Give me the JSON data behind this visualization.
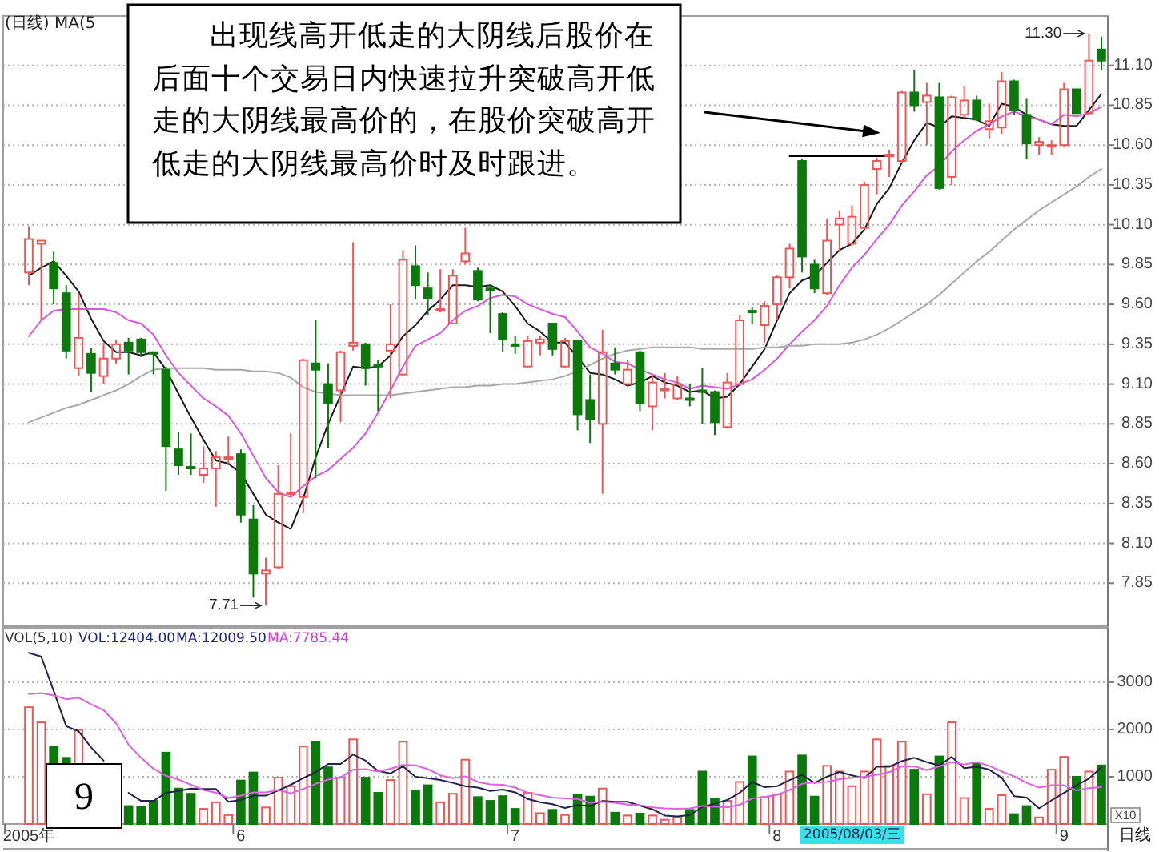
{
  "chart_data": [
    {
      "type": "candlestick",
      "categories": [
        null,
        null,
        null,
        null,
        null,
        null,
        null,
        null,
        null,
        null,
        null,
        null,
        null,
        null,
        null,
        null,
        null,
        null,
        null,
        null,
        null,
        null,
        null,
        null,
        null,
        null,
        null,
        null,
        null,
        null,
        null,
        null,
        null,
        null,
        null,
        null,
        null,
        null,
        null,
        null,
        null,
        null,
        null,
        null,
        null,
        null,
        null,
        null,
        null,
        null,
        null,
        null,
        null,
        null,
        null,
        null,
        null,
        null,
        null,
        null,
        null,
        null,
        null,
        null,
        null,
        null,
        null,
        null,
        null,
        null,
        null,
        null,
        null,
        null,
        null,
        null,
        null,
        null,
        null,
        null,
        null,
        null,
        null,
        null,
        null,
        null,
        null
      ],
      "ohlc": [
        [
          9.8,
          10.09,
          9.72,
          10.01
        ],
        [
          9.98,
          10.0,
          9.5,
          10.0
        ],
        [
          9.86,
          9.93,
          9.6,
          9.7
        ],
        [
          9.67,
          9.72,
          9.26,
          9.31
        ],
        [
          9.2,
          9.67,
          9.15,
          9.39
        ],
        [
          9.29,
          9.33,
          9.05,
          9.17
        ],
        [
          9.15,
          9.36,
          9.1,
          9.26
        ],
        [
          9.26,
          9.38,
          9.23,
          9.35
        ],
        [
          9.36,
          9.39,
          9.16,
          9.31
        ],
        [
          9.38,
          9.39,
          9.27,
          9.3
        ],
        [
          9.3,
          9.3,
          9.16,
          9.29
        ],
        [
          9.19,
          9.21,
          8.43,
          8.71
        ],
        [
          8.69,
          8.8,
          8.53,
          8.59
        ],
        [
          8.58,
          8.79,
          8.53,
          8.57
        ],
        [
          8.53,
          8.71,
          8.48,
          8.57
        ],
        [
          8.57,
          8.68,
          8.33,
          8.64
        ],
        [
          8.63,
          8.77,
          8.59,
          8.64
        ],
        [
          8.66,
          8.69,
          8.23,
          8.28
        ],
        [
          8.25,
          8.34,
          7.76,
          7.91
        ],
        [
          7.91,
          8.01,
          7.71,
          7.93
        ],
        [
          7.95,
          8.59,
          7.94,
          8.41
        ],
        [
          8.41,
          8.79,
          8.39,
          8.42
        ],
        [
          8.39,
          9.26,
          8.29,
          9.25
        ],
        [
          9.23,
          9.5,
          8.51,
          9.19
        ],
        [
          9.1,
          9.23,
          8.7,
          8.98
        ],
        [
          9.06,
          9.31,
          8.86,
          9.3
        ],
        [
          9.34,
          9.99,
          9.31,
          9.36
        ],
        [
          9.35,
          9.36,
          9.09,
          9.2
        ],
        [
          9.22,
          9.25,
          8.93,
          9.21
        ],
        [
          9.31,
          9.6,
          9.01,
          9.35
        ],
        [
          9.16,
          9.94,
          9.15,
          9.88
        ],
        [
          9.84,
          9.97,
          9.63,
          9.72
        ],
        [
          9.7,
          9.8,
          9.53,
          9.64
        ],
        [
          9.56,
          9.82,
          9.55,
          9.57
        ],
        [
          9.48,
          9.82,
          9.48,
          9.78
        ],
        [
          9.87,
          10.08,
          9.85,
          9.92
        ],
        [
          9.81,
          9.83,
          9.62,
          9.63
        ],
        [
          9.7,
          9.72,
          9.42,
          9.69
        ],
        [
          9.54,
          9.55,
          9.3,
          9.38
        ],
        [
          9.35,
          9.4,
          9.29,
          9.34
        ],
        [
          9.21,
          9.4,
          9.2,
          9.37
        ],
        [
          9.36,
          9.4,
          9.28,
          9.38
        ],
        [
          9.48,
          9.48,
          9.28,
          9.32
        ],
        [
          9.21,
          9.39,
          9.2,
          9.37
        ],
        [
          9.37,
          9.38,
          8.81,
          8.91
        ],
        [
          9.0,
          9.16,
          8.73,
          8.88
        ],
        [
          8.85,
          9.44,
          8.41,
          9.3
        ],
        [
          9.23,
          9.33,
          9.16,
          9.19
        ],
        [
          9.1,
          9.25,
          9.09,
          9.19
        ],
        [
          9.3,
          9.31,
          8.93,
          8.98
        ],
        [
          8.96,
          9.16,
          8.81,
          9.11
        ],
        [
          9.06,
          9.17,
          9.01,
          9.07
        ],
        [
          9.01,
          9.15,
          9.0,
          9.1
        ],
        [
          9.01,
          9.1,
          8.96,
          9.0
        ],
        [
          9.06,
          9.2,
          8.85,
          9.05
        ],
        [
          9.05,
          9.06,
          8.78,
          8.86
        ],
        [
          8.83,
          9.17,
          8.82,
          9.11
        ],
        [
          9.1,
          9.53,
          9.1,
          9.5
        ],
        [
          9.56,
          9.58,
          9.48,
          9.55
        ],
        [
          9.47,
          9.62,
          9.36,
          9.59
        ],
        [
          9.6,
          9.78,
          9.5,
          9.77
        ],
        [
          9.77,
          9.98,
          9.7,
          9.95
        ],
        [
          10.5,
          10.51,
          9.8,
          9.9
        ],
        [
          9.85,
          9.88,
          9.67,
          9.7
        ],
        [
          9.67,
          10.14,
          9.66,
          10.0
        ],
        [
          10.1,
          10.19,
          9.93,
          10.14
        ],
        [
          9.98,
          10.22,
          9.97,
          10.15
        ],
        [
          10.08,
          10.37,
          10.07,
          10.35
        ],
        [
          10.45,
          10.52,
          10.29,
          10.5
        ],
        [
          10.53,
          10.57,
          10.4,
          10.54
        ],
        [
          10.5,
          10.94,
          10.49,
          10.93
        ],
        [
          10.93,
          11.07,
          10.81,
          10.85
        ],
        [
          10.87,
          10.99,
          10.6,
          10.91
        ],
        [
          10.9,
          10.99,
          10.32,
          10.33
        ],
        [
          10.4,
          10.91,
          10.35,
          10.9
        ],
        [
          10.79,
          10.97,
          10.77,
          10.88
        ],
        [
          10.88,
          10.91,
          10.75,
          10.76
        ],
        [
          10.7,
          10.86,
          10.64,
          10.75
        ],
        [
          10.71,
          11.06,
          10.67,
          11.0
        ],
        [
          11.0,
          11.01,
          10.79,
          10.82
        ],
        [
          10.79,
          10.89,
          10.51,
          10.61
        ],
        [
          10.6,
          10.65,
          10.54,
          10.62
        ],
        [
          10.59,
          10.63,
          10.54,
          10.6
        ],
        [
          10.6,
          10.99,
          10.59,
          10.95
        ],
        [
          10.95,
          10.95,
          10.8,
          10.8
        ],
        [
          10.8,
          11.3,
          10.79,
          11.13
        ],
        [
          11.2,
          11.28,
          11.07,
          11.13
        ]
      ],
      "colors": [
        "#ee5555",
        "#ee5555",
        "#0b7a0b",
        "#0b7a0b",
        "#ee5555",
        "#0b7a0b",
        "#ee5555",
        "#ee5555",
        "#0b7a0b",
        "#0b7a0b",
        "#0b7a0b",
        "#0b7a0b",
        "#0b7a0b",
        "#0b7a0b",
        "#ee5555",
        "#ee5555",
        "#ee5555",
        "#0b7a0b",
        "#0b7a0b",
        "#ee5555",
        "#ee5555",
        "#ee5555",
        "#ee5555",
        "#0b7a0b",
        "#0b7a0b",
        "#ee5555",
        "#ee5555",
        "#0b7a0b",
        "#0b7a0b",
        "#ee5555",
        "#ee5555",
        "#0b7a0b",
        "#0b7a0b",
        "#ee5555",
        "#ee5555",
        "#ee5555",
        "#0b7a0b",
        "#0b7a0b",
        "#0b7a0b",
        "#0b7a0b",
        "#ee5555",
        "#ee5555",
        "#0b7a0b",
        "#ee5555",
        "#0b7a0b",
        "#0b7a0b",
        "#ee5555",
        "#0b7a0b",
        "#ee5555",
        "#0b7a0b",
        "#ee5555",
        "#ee5555",
        "#ee5555",
        "#0b7a0b",
        "#0b7a0b",
        "#0b7a0b",
        "#ee5555",
        "#ee5555",
        "#0b7a0b",
        "#ee5555",
        "#ee5555",
        "#ee5555",
        "#0b7a0b",
        "#0b7a0b",
        "#ee5555",
        "#ee5555",
        "#ee5555",
        "#ee5555",
        "#ee5555",
        "#ee5555",
        "#ee5555",
        "#0b7a0b",
        "#ee5555",
        "#0b7a0b",
        "#ee5555",
        "#ee5555",
        "#0b7a0b",
        "#ee5555",
        "#ee5555",
        "#0b7a0b",
        "#0b7a0b",
        "#ee5555",
        "#ee5555",
        "#ee5555",
        "#0b7a0b",
        "#ee5555",
        "#0b7a0b"
      ],
      "series": [
        {
          "type": "line",
          "color": "#1a1a1a",
          "values": [
            9.78,
            9.83,
            9.87,
            9.78,
            9.68,
            9.51,
            9.37,
            9.3,
            9.3,
            9.28,
            9.3,
            9.19,
            9.04,
            8.89,
            8.75,
            8.62,
            8.6,
            8.54,
            8.41,
            8.28,
            8.23,
            8.19,
            8.38,
            8.64,
            8.85,
            9.03,
            9.21,
            9.2,
            9.21,
            9.28,
            9.4,
            9.47,
            9.56,
            9.63,
            9.72,
            9.72,
            9.71,
            9.72,
            9.68,
            9.59,
            9.48,
            9.43,
            9.36,
            9.36,
            9.27,
            9.17,
            9.16,
            9.13,
            9.09,
            9.11,
            9.15,
            9.11,
            9.09,
            9.05,
            9.06,
            9.01,
            9.02,
            9.1,
            9.21,
            9.32,
            9.5,
            9.67,
            9.75,
            9.78,
            9.86,
            9.94,
            9.98,
            10.07,
            10.23,
            10.33,
            10.49,
            10.63,
            10.74,
            10.71,
            10.78,
            10.77,
            10.76,
            10.72,
            10.86,
            10.84,
            10.79,
            10.76,
            10.73,
            10.72,
            10.72,
            10.82,
            10.92
          ]
        },
        {
          "type": "line",
          "color": "#dd55dd",
          "values": [
            9.4,
            9.5,
            9.56,
            9.57,
            9.57,
            9.57,
            9.57,
            9.55,
            9.5,
            9.48,
            9.41,
            9.28,
            9.17,
            9.09,
            9.01,
            8.96,
            8.9,
            8.79,
            8.65,
            8.51,
            8.42,
            8.39,
            8.46,
            8.52,
            8.56,
            8.63,
            8.7,
            8.79,
            8.92,
            9.06,
            9.21,
            9.34,
            9.38,
            9.42,
            9.5,
            9.56,
            9.59,
            9.64,
            9.66,
            9.65,
            9.6,
            9.57,
            9.54,
            9.52,
            9.43,
            9.33,
            9.29,
            9.24,
            9.23,
            9.19,
            9.16,
            9.13,
            9.11,
            9.07,
            9.09,
            9.08,
            9.07,
            9.1,
            9.13,
            9.19,
            9.26,
            9.35,
            9.43,
            9.5,
            9.59,
            9.72,
            9.83,
            9.91,
            10.01,
            10.1,
            10.22,
            10.31,
            10.41,
            10.47,
            10.56,
            10.63,
            10.69,
            10.73,
            10.78,
            10.81,
            10.78,
            10.76,
            10.73,
            10.79,
            10.78,
            10.8,
            10.84
          ]
        },
        {
          "type": "line",
          "color": "#a8a8a8",
          "values": [
            8.86,
            8.89,
            8.92,
            8.95,
            8.97,
            9.0,
            9.03,
            9.06,
            9.1,
            9.15,
            9.19,
            9.2,
            9.2,
            9.2,
            9.2,
            9.19,
            9.19,
            9.19,
            9.18,
            9.18,
            9.17,
            9.14,
            9.08,
            9.05,
            9.04,
            9.03,
            9.03,
            9.03,
            9.03,
            9.03,
            9.04,
            9.05,
            9.06,
            9.07,
            9.08,
            9.08,
            9.09,
            9.09,
            9.1,
            9.1,
            9.11,
            9.12,
            9.13,
            9.15,
            9.18,
            9.22,
            9.26,
            9.29,
            9.31,
            9.32,
            9.33,
            9.33,
            9.33,
            9.33,
            9.32,
            9.32,
            9.32,
            9.32,
            9.32,
            9.33,
            9.33,
            9.34,
            9.34,
            9.35,
            9.35,
            9.35,
            9.36,
            9.38,
            9.41,
            9.45,
            9.5,
            9.55,
            9.6,
            9.66,
            9.73,
            9.8,
            9.87,
            9.93,
            10.0,
            10.07,
            10.13,
            10.19,
            10.24,
            10.29,
            10.34,
            10.4,
            10.45
          ]
        },
        {
          "type": "line",
          "color": "#000000",
          "values": [
            null,
            null,
            null,
            null,
            null,
            null,
            null,
            null,
            null,
            null,
            null,
            null,
            null,
            null,
            null,
            null,
            null,
            null,
            null,
            null,
            null,
            null,
            null,
            null,
            null,
            null,
            null,
            null,
            null,
            null,
            null,
            null,
            null,
            null,
            null,
            null,
            null,
            null,
            null,
            null,
            null,
            null,
            null,
            null,
            null,
            null,
            null,
            null,
            null,
            null,
            null,
            null,
            null,
            null,
            null,
            null,
            null,
            null,
            null,
            null,
            null,
            10.53,
            10.53,
            10.53,
            10.53,
            10.53,
            10.53,
            10.53,
            10.53,
            10.53,
            null,
            null,
            null,
            null,
            null,
            null,
            null,
            null,
            null,
            null,
            null,
            null,
            null,
            null,
            null,
            null,
            null
          ]
        }
      ],
      "ylim": [
        7.58,
        11.41
      ],
      "yticks": [
        7.85,
        {
          "value": 8.1,
          "label": "8.10"
        },
        8.35,
        {
          "value": 8.6,
          "label": "8.60"
        },
        8.85,
        {
          "value": 9.1,
          "label": "9.10"
        },
        9.35,
        {
          "value": 9.6,
          "label": "9.60"
        },
        9.85,
        {
          "value": 10.1,
          "label": "10.10"
        },
        10.35,
        {
          "value": 10.6,
          "label": "10.60"
        },
        10.85,
        {
          "value": 11.1,
          "label": "11.10"
        }
      ],
      "grid": "y",
      "tick_labels": "y",
      "annotations": [
        "(日线) MA(5",
        "出现线高开低走的大阴线后股价在后面十个交易日内快速拉升突破高开低走的大阴线最高价的，在股价突破高开低走的大阴线最高价时及时跟进。",
        "11.30",
        "7.71"
      ]
    },
    {
      "type": "bar",
      "categories": [
        "2005年",
        null,
        null,
        null,
        null,
        null,
        null,
        null,
        null,
        null,
        null,
        null,
        null,
        null,
        null,
        null,
        null,
        "6",
        null,
        null,
        null,
        null,
        null,
        null,
        null,
        null,
        null,
        null,
        null,
        null,
        null,
        null,
        null,
        null,
        null,
        null,
        null,
        null,
        null,
        "7",
        null,
        null,
        null,
        null,
        null,
        null,
        null,
        null,
        null,
        null,
        null,
        null,
        null,
        null,
        null,
        null,
        null,
        null,
        null,
        null,
        "8",
        null,
        null,
        null,
        null,
        null,
        null,
        null,
        null,
        null,
        null,
        null,
        null,
        null,
        null,
        null,
        null,
        null,
        null,
        null,
        null,
        null,
        null,
        "9",
        null,
        null,
        null
      ],
      "series": [
        {
          "colors": [
            "#ee5555",
            "#ee5555",
            "#0b7a0b",
            "#0b7a0b",
            "#ee5555",
            null,
            null,
            null,
            "#0b7a0b",
            "#0b7a0b",
            "#0b7a0b",
            "#0b7a0b",
            "#0b7a0b",
            "#0b7a0b",
            "#ee5555",
            "#ee5555",
            "#ee5555",
            "#0b7a0b",
            "#0b7a0b",
            "#ee5555",
            "#ee5555",
            "#ee5555",
            "#ee5555",
            "#0b7a0b",
            "#0b7a0b",
            "#ee5555",
            "#ee5555",
            "#0b7a0b",
            "#0b7a0b",
            "#ee5555",
            "#ee5555",
            "#0b7a0b",
            "#0b7a0b",
            "#ee5555",
            "#ee5555",
            "#ee5555",
            "#0b7a0b",
            "#0b7a0b",
            "#0b7a0b",
            "#0b7a0b",
            "#ee5555",
            "#ee5555",
            "#0b7a0b",
            "#ee5555",
            "#0b7a0b",
            "#0b7a0b",
            "#ee5555",
            "#0b7a0b",
            "#ee5555",
            "#0b7a0b",
            "#ee5555",
            "#ee5555",
            "#ee5555",
            "#0b7a0b",
            "#0b7a0b",
            "#0b7a0b",
            "#ee5555",
            "#ee5555",
            "#0b7a0b",
            "#ee5555",
            "#ee5555",
            "#ee5555",
            "#0b7a0b",
            "#0b7a0b",
            "#ee5555",
            "#ee5555",
            "#ee5555",
            "#ee5555",
            "#ee5555",
            "#ee5555",
            "#ee5555",
            "#0b7a0b",
            "#ee5555",
            "#0b7a0b",
            "#ee5555",
            "#ee5555",
            "#0b7a0b",
            "#ee5555",
            "#ee5555",
            "#0b7a0b",
            "#0b7a0b",
            "#ee5555",
            "#ee5555",
            "#ee5555",
            "#0b7a0b",
            "#ee5555",
            "#0b7a0b"
          ],
          "values": [
            2470,
            2150,
            1640,
            1400,
            1990,
            null,
            null,
            null,
            380,
            360,
            490,
            1510,
            750,
            640,
            320,
            460,
            190,
            920,
            1090,
            350,
            980,
            800,
            1640,
            1740,
            1200,
            980,
            1790,
            980,
            660,
            930,
            1740,
            710,
            820,
            460,
            640,
            1360,
            570,
            490,
            590,
            320,
            660,
            230,
            300,
            190,
            610,
            580,
            750,
            240,
            180,
            220,
            180,
            90,
            140,
            300,
            1110,
            530,
            490,
            890,
            1430,
            570,
            630,
            1110,
            1450,
            580,
            1230,
            1110,
            800,
            1110,
            1790,
            1230,
            1740,
            1150,
            630,
            1430,
            2150,
            550,
            1280,
            320,
            610,
            210,
            380,
            140,
            1150,
            1420,
            1000,
            1110,
            1240
          ]
        },
        {
          "type": "line",
          "color": "#22224a",
          "values": [
            3620,
            3540,
            2810,
            2070,
            1960,
            1620,
            1340,
            null,
            660,
            490,
            490,
            660,
            700,
            750,
            740,
            740,
            470,
            510,
            600,
            600,
            710,
            830,
            970,
            1100,
            1270,
            1270,
            1470,
            1340,
            1120,
            1070,
            1220,
            1000,
            970,
            930,
            870,
            800,
            770,
            700,
            730,
            670,
            530,
            460,
            420,
            340,
            400,
            380,
            490,
            470,
            470,
            390,
            310,
            180,
            160,
            190,
            360,
            430,
            510,
            660,
            890,
            780,
            800,
            930,
            1040,
            870,
            1000,
            1100,
            1030,
            970,
            1210,
            1210,
            1330,
            1400,
            1310,
            1240,
            1420,
            1180,
            1210,
            1150,
            980,
            590,
            560,
            330,
            500,
            660,
            820,
            960,
            1200
          ]
        },
        {
          "type": "line",
          "color": "#e060e0",
          "values": [
            2750,
            2770,
            2720,
            2640,
            2670,
            2530,
            2410,
            2130,
            1680,
            1400,
            1170,
            1020,
            940,
            830,
            720,
            660,
            550,
            600,
            670,
            670,
            720,
            650,
            740,
            850,
            940,
            990,
            1150,
            1160,
            1110,
            1170,
            1250,
            1240,
            1160,
            1030,
            970,
            1010,
            890,
            840,
            830,
            770,
            660,
            610,
            560,
            540,
            530,
            450,
            470,
            450,
            410,
            400,
            350,
            330,
            320,
            330,
            380,
            370,
            350,
            410,
            540,
            570,
            620,
            720,
            850,
            880,
            890,
            950,
            980,
            1000,
            1040,
            1100,
            1220,
            1220,
            1140,
            1220,
            1310,
            1260,
            1310,
            1230,
            1110,
            1010,
            870,
            770,
            820,
            820,
            710,
            760,
            780
          ]
        }
      ],
      "ylim": [
        0,
        4150
      ],
      "yticks": [
        1000,
        2000,
        3000
      ],
      "grid": "y",
      "ylabel": "X10",
      "annotations": [
        "VOL(5,10)",
        "VOL:12404.00",
        "MA:12009.50",
        "MA:7785.44",
        "2005/08/03/三",
        "日线",
        "9"
      ]
    }
  ]
}
